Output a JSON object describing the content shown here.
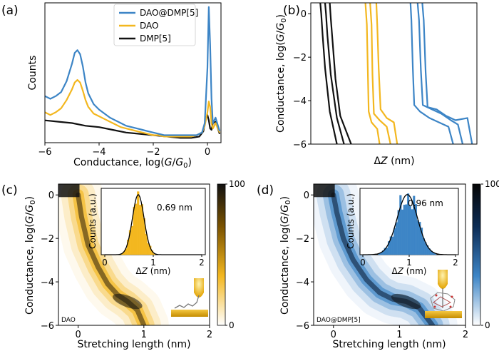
{
  "panels": {
    "a": {
      "label": "(a)"
    },
    "b": {
      "label": "(b)"
    },
    "c": {
      "label": "(c)"
    },
    "d": {
      "label": "(d)"
    }
  },
  "colors": {
    "DAO@DMP[5]": "#3d85c6",
    "DAO": "#f3b71f",
    "DMP[5]": "#111111"
  },
  "chart_data": [
    {
      "panel": "a",
      "type": "line",
      "xlabel": "Conductance, log(G/G0)",
      "ylabel": "Counts",
      "xlim": [
        -6,
        0.5
      ],
      "xticks": [
        -6,
        -4,
        -2,
        0
      ],
      "yticks": [],
      "legend_position": "top-center",
      "series": [
        {
          "name": "DAO@DMP[5]",
          "color": "#3d85c6",
          "x": [
            -6,
            -5.8,
            -5.6,
            -5.4,
            -5.2,
            -5.0,
            -4.9,
            -4.8,
            -4.7,
            -4.6,
            -4.5,
            -4.4,
            -4.2,
            -4.0,
            -3.8,
            -3.6,
            -3.4,
            -3.2,
            -3.0,
            -2.8,
            -2.6,
            -2.4,
            -2.2,
            -2.0,
            -1.8,
            -1.6,
            -1.4,
            -1.2,
            -1.0,
            -0.8,
            -0.6,
            -0.4,
            -0.2,
            -0.1,
            0.0,
            0.05,
            0.1,
            0.15,
            0.2,
            0.3,
            0.45
          ],
          "y": [
            0.34,
            0.32,
            0.34,
            0.37,
            0.45,
            0.58,
            0.66,
            0.68,
            0.65,
            0.56,
            0.44,
            0.36,
            0.28,
            0.24,
            0.21,
            0.18,
            0.16,
            0.14,
            0.12,
            0.11,
            0.1,
            0.09,
            0.08,
            0.07,
            0.06,
            0.05,
            0.05,
            0.05,
            0.05,
            0.05,
            0.05,
            0.05,
            0.07,
            0.14,
            0.55,
            1.0,
            0.72,
            0.32,
            0.14,
            0.18,
            0.08
          ]
        },
        {
          "name": "DAO",
          "color": "#f3b71f",
          "x": [
            -6,
            -5.8,
            -5.6,
            -5.4,
            -5.2,
            -5.0,
            -4.9,
            -4.8,
            -4.7,
            -4.6,
            -4.5,
            -4.4,
            -4.2,
            -4.0,
            -3.8,
            -3.6,
            -3.4,
            -3.2,
            -3.0,
            -2.8,
            -2.6,
            -2.4,
            -2.2,
            -2.0,
            -1.8,
            -1.6,
            -1.4,
            -1.2,
            -1.0,
            -0.8,
            -0.6,
            -0.4,
            -0.2,
            -0.1,
            0.0,
            0.05,
            0.1,
            0.15,
            0.2,
            0.3,
            0.45
          ],
          "y": [
            0.22,
            0.2,
            0.22,
            0.25,
            0.31,
            0.39,
            0.44,
            0.46,
            0.44,
            0.38,
            0.31,
            0.26,
            0.21,
            0.19,
            0.17,
            0.15,
            0.13,
            0.11,
            0.1,
            0.09,
            0.08,
            0.07,
            0.06,
            0.05,
            0.05,
            0.04,
            0.04,
            0.04,
            0.04,
            0.04,
            0.04,
            0.05,
            0.07,
            0.12,
            0.22,
            0.3,
            0.26,
            0.14,
            0.1,
            0.14,
            0.07
          ]
        },
        {
          "name": "DMP[5]",
          "color": "#111111",
          "x": [
            -6,
            -5.5,
            -5.0,
            -4.5,
            -4.0,
            -3.5,
            -3.0,
            -2.5,
            -2.0,
            -1.5,
            -1.0,
            -0.6,
            -0.3,
            -0.15,
            -0.05,
            0.0,
            0.05,
            0.1,
            0.15,
            0.2,
            0.3,
            0.45
          ],
          "y": [
            0.16,
            0.15,
            0.14,
            0.12,
            0.11,
            0.09,
            0.07,
            0.06,
            0.05,
            0.04,
            0.03,
            0.03,
            0.04,
            0.08,
            0.18,
            0.2,
            0.16,
            0.1,
            0.09,
            0.14,
            0.15,
            0.06
          ]
        }
      ]
    },
    {
      "panel": "b",
      "type": "line",
      "xlabel": "ΔZ (nm)",
      "ylabel": "Conductance, log(G/G0)",
      "ylim": [
        -6,
        0.5
      ],
      "yticks": [
        -6,
        -4,
        -2,
        0
      ],
      "xticks": [],
      "xlim": [
        0,
        3.5
      ],
      "series": [
        {
          "name": "DMP[5]",
          "color": "#111111",
          "x": [
            0.2,
            0.22,
            0.25,
            0.3,
            0.4,
            0.55
          ],
          "y": [
            0.5,
            0.0,
            -1.0,
            -2.5,
            -4.5,
            -6.0
          ]
        },
        {
          "name": "DMP[5]",
          "color": "#111111",
          "x": [
            0.3,
            0.32,
            0.35,
            0.42,
            0.55,
            0.7
          ],
          "y": [
            0.5,
            0.0,
            -1.0,
            -2.8,
            -4.8,
            -6.0
          ]
        },
        {
          "name": "DMP[5]",
          "color": "#111111",
          "x": [
            0.4,
            0.42,
            0.46,
            0.52,
            0.62,
            0.85
          ],
          "y": [
            0.5,
            -0.2,
            -1.3,
            -3.0,
            -4.7,
            -6.0
          ]
        },
        {
          "name": "DAO",
          "color": "#f3b71f",
          "x": [
            1.15,
            1.18,
            1.2,
            1.22,
            1.28,
            1.4,
            1.45
          ],
          "y": [
            0.5,
            -0.5,
            -2.5,
            -4.5,
            -5.0,
            -5.3,
            -6.0
          ]
        },
        {
          "name": "DAO",
          "color": "#f3b71f",
          "x": [
            1.25,
            1.28,
            1.3,
            1.33,
            1.45,
            1.6,
            1.68
          ],
          "y": [
            0.5,
            -0.5,
            -2.8,
            -4.6,
            -4.9,
            -5.2,
            -6.0
          ]
        },
        {
          "name": "DAO",
          "color": "#f3b71f",
          "x": [
            1.38,
            1.4,
            1.43,
            1.47,
            1.6,
            1.75,
            1.82
          ],
          "y": [
            0.5,
            -0.5,
            -2.5,
            -4.4,
            -4.8,
            -5.0,
            -6.0
          ]
        },
        {
          "name": "DAO@DMP[5]",
          "color": "#3d85c6",
          "x": [
            2.1,
            2.12,
            2.15,
            2.18,
            2.3,
            2.5,
            2.7,
            2.9,
            3.0
          ],
          "y": [
            0.5,
            -0.3,
            -2.5,
            -4.2,
            -4.5,
            -4.8,
            -5.0,
            -5.2,
            -6.0
          ]
        },
        {
          "name": "DAO@DMP[5]",
          "color": "#3d85c6",
          "x": [
            2.25,
            2.28,
            2.32,
            2.36,
            2.55,
            2.75,
            2.95,
            3.1,
            3.2
          ],
          "y": [
            0.5,
            -0.3,
            -2.6,
            -4.2,
            -4.4,
            -4.6,
            -4.9,
            -5.1,
            -6.0
          ]
        },
        {
          "name": "DAO@DMP[5]",
          "color": "#3d85c6",
          "x": [
            2.35,
            2.38,
            2.42,
            2.46,
            2.65,
            2.85,
            3.05,
            3.3,
            3.4
          ],
          "y": [
            0.5,
            -0.3,
            -2.7,
            -4.3,
            -4.4,
            -4.7,
            -4.9,
            -4.8,
            -6.0
          ]
        }
      ]
    },
    {
      "panel": "c",
      "type": "heatmap",
      "xlabel": "Stretching length (nm)",
      "ylabel": "Conductance, log(G/G0)",
      "xlim": [
        -0.3,
        2
      ],
      "ylim": [
        -6,
        0.5
      ],
      "xticks": [
        0,
        1,
        2
      ],
      "yticks": [
        -6,
        -4,
        -2,
        0
      ],
      "colorbar": {
        "min": 0,
        "max": 100,
        "ticks": [
          0,
          100
        ]
      },
      "tag": "DAO",
      "colormap_color": "#f3b71f",
      "ridge": {
        "x": [
          0.0,
          0.05,
          0.15,
          0.3,
          0.45,
          0.6,
          0.75,
          0.9,
          1.0
        ],
        "y": [
          0.0,
          -1.0,
          -2.3,
          -3.3,
          -4.1,
          -4.6,
          -4.9,
          -5.3,
          -6.0
        ]
      },
      "inset": {
        "type": "histogram",
        "xlabel": "ΔZ (nm)",
        "ylabel": "Counts (a.u.)",
        "xlim": [
          0,
          2
        ],
        "xticks": [
          0,
          1,
          2
        ],
        "annotation": "0.69 nm",
        "peak": 0.69,
        "width": 0.12
      }
    },
    {
      "panel": "d",
      "type": "heatmap",
      "xlabel": "Stretching length (nm)",
      "ylabel": "Conductance, log(G/G0)",
      "xlim": [
        -0.3,
        2
      ],
      "ylim": [
        -6,
        0.5
      ],
      "xticks": [
        0,
        1,
        2
      ],
      "yticks": [
        -6,
        -4,
        -2,
        0
      ],
      "colorbar": {
        "min": 0,
        "max": 100,
        "ticks": [
          0,
          100
        ]
      },
      "tag": "DAO@DMP[5]",
      "colormap_color": "#3d85c6",
      "ridge": {
        "x": [
          0.0,
          0.05,
          0.15,
          0.3,
          0.5,
          0.7,
          0.9,
          1.1,
          1.3,
          1.5
        ],
        "y": [
          0.0,
          -0.8,
          -2.0,
          -3.0,
          -3.9,
          -4.5,
          -4.8,
          -4.9,
          -5.2,
          -6.0
        ]
      },
      "inset": {
        "type": "histogram",
        "xlabel": "ΔZ (nm)",
        "ylabel": "Counts (a.u.)",
        "xlim": [
          0,
          2
        ],
        "xticks": [
          0,
          1,
          2
        ],
        "annotation": "0.96 nm",
        "peak": 0.96,
        "width": 0.22
      }
    }
  ],
  "text": {
    "a_xlabel_pre": "Conductance, log(",
    "a_xlabel_G": "G",
    "a_xlabel_slash": "/",
    "a_xlabel_G0": "G",
    "a_xlabel_sub": "0",
    "a_xlabel_post": ")",
    "counts": "Counts",
    "dz_delta": "Δ",
    "dz_Z": "Z",
    "dz_nm": " (nm)",
    "stretch": "Stretching length (nm)",
    "cond_pre": "Conductance, log(",
    "counts_au": "Counts (a.u.)",
    "legend_1": "DAO@DMP[5]",
    "legend_2": "DAO",
    "legend_3": "DMP[5]",
    "c_tag": "DAO",
    "d_tag": "DAO@DMP[5]",
    "c_annot": "0.69 nm",
    "d_annot": "0.96 nm"
  }
}
